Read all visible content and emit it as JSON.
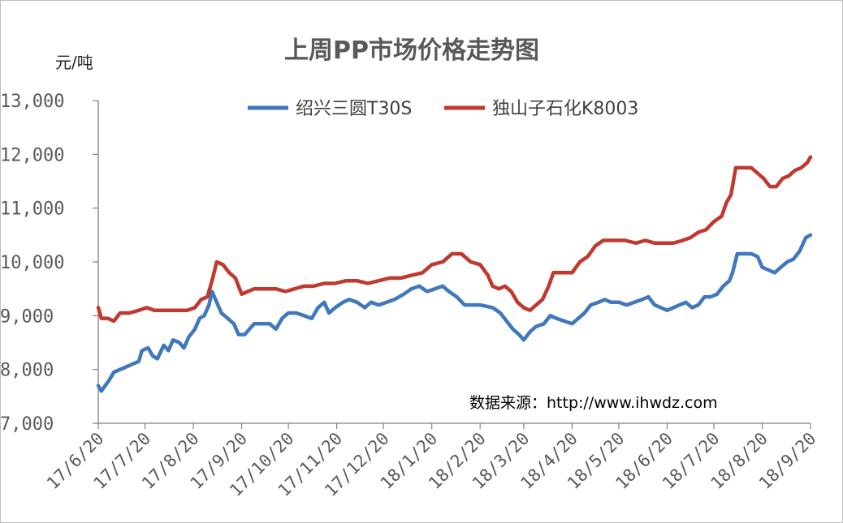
{
  "chart_data": {
    "type": "line",
    "title": "上周PP市场价格走势图",
    "ylabel": "元/吨",
    "ylim": [
      7000,
      13000
    ],
    "yticks": [
      "7,000",
      "8,000",
      "9,000",
      "10,000",
      "11,000",
      "12,000",
      "13,000"
    ],
    "ytick_values": [
      7000,
      8000,
      9000,
      10000,
      11000,
      12000,
      13000
    ],
    "xlim": [
      "2017-06-20",
      "2018-09-20"
    ],
    "xticks": [
      "17/6/20",
      "17/7/20",
      "17/8/20",
      "17/9/20",
      "17/10/20",
      "17/11/20",
      "17/12/20",
      "18/1/20",
      "18/2/20",
      "18/3/20",
      "18/4/20",
      "18/5/20",
      "18/6/20",
      "18/7/20",
      "18/8/20",
      "18/9/20"
    ],
    "grid": false,
    "legend_position": "top-center",
    "source_note": "数据来源：http://www.ihwdz.com",
    "series": [
      {
        "name": "绍兴三圆T30S",
        "color": "#3F78BC",
        "points": [
          [
            "2017-06-20",
            7700
          ],
          [
            "2017-06-22",
            7600
          ],
          [
            "2017-06-27",
            7800
          ],
          [
            "2017-06-30",
            7950
          ],
          [
            "2017-07-04",
            8000
          ],
          [
            "2017-07-08",
            8050
          ],
          [
            "2017-07-12",
            8100
          ],
          [
            "2017-07-16",
            8150
          ],
          [
            "2017-07-18",
            8350
          ],
          [
            "2017-07-22",
            8400
          ],
          [
            "2017-07-25",
            8250
          ],
          [
            "2017-07-28",
            8200
          ],
          [
            "2017-08-01",
            8450
          ],
          [
            "2017-08-04",
            8350
          ],
          [
            "2017-08-07",
            8550
          ],
          [
            "2017-08-11",
            8500
          ],
          [
            "2017-08-14",
            8400
          ],
          [
            "2017-08-17",
            8600
          ],
          [
            "2017-08-21",
            8750
          ],
          [
            "2017-08-24",
            8950
          ],
          [
            "2017-08-27",
            9000
          ],
          [
            "2017-08-30",
            9200
          ],
          [
            "2017-09-01",
            9450
          ],
          [
            "2017-09-04",
            9250
          ],
          [
            "2017-09-07",
            9050
          ],
          [
            "2017-09-11",
            8950
          ],
          [
            "2017-09-15",
            8850
          ],
          [
            "2017-09-18",
            8650
          ],
          [
            "2017-09-22",
            8650
          ],
          [
            "2017-09-25",
            8750
          ],
          [
            "2017-09-28",
            8850
          ],
          [
            "2017-10-03",
            8850
          ],
          [
            "2017-10-08",
            8850
          ],
          [
            "2017-10-12",
            8750
          ],
          [
            "2017-10-16",
            8950
          ],
          [
            "2017-10-20",
            9050
          ],
          [
            "2017-10-25",
            9050
          ],
          [
            "2017-10-30",
            9000
          ],
          [
            "2017-11-04",
            8950
          ],
          [
            "2017-11-08",
            9150
          ],
          [
            "2017-11-12",
            9250
          ],
          [
            "2017-11-15",
            9050
          ],
          [
            "2017-11-19",
            9150
          ],
          [
            "2017-11-24",
            9250
          ],
          [
            "2017-11-28",
            9300
          ],
          [
            "2017-12-03",
            9250
          ],
          [
            "2017-12-08",
            9150
          ],
          [
            "2017-12-12",
            9250
          ],
          [
            "2017-12-17",
            9200
          ],
          [
            "2017-12-22",
            9250
          ],
          [
            "2017-12-27",
            9300
          ],
          [
            "2018-01-02",
            9400
          ],
          [
            "2018-01-07",
            9500
          ],
          [
            "2018-01-12",
            9550
          ],
          [
            "2018-01-17",
            9450
          ],
          [
            "2018-01-22",
            9500
          ],
          [
            "2018-01-27",
            9550
          ],
          [
            "2018-01-31",
            9450
          ],
          [
            "2018-02-05",
            9350
          ],
          [
            "2018-02-10",
            9200
          ],
          [
            "2018-02-20",
            9200
          ],
          [
            "2018-02-28",
            9150
          ],
          [
            "2018-03-05",
            9050
          ],
          [
            "2018-03-09",
            8900
          ],
          [
            "2018-03-13",
            8750
          ],
          [
            "2018-03-17",
            8650
          ],
          [
            "2018-03-20",
            8550
          ],
          [
            "2018-03-24",
            8700
          ],
          [
            "2018-03-28",
            8800
          ],
          [
            "2018-04-02",
            8850
          ],
          [
            "2018-04-06",
            9000
          ],
          [
            "2018-04-10",
            8950
          ],
          [
            "2018-04-15",
            8900
          ],
          [
            "2018-04-20",
            8850
          ],
          [
            "2018-04-24",
            8950
          ],
          [
            "2018-04-28",
            9050
          ],
          [
            "2018-05-02",
            9200
          ],
          [
            "2018-05-07",
            9250
          ],
          [
            "2018-05-11",
            9300
          ],
          [
            "2018-05-15",
            9250
          ],
          [
            "2018-05-20",
            9250
          ],
          [
            "2018-05-25",
            9200
          ],
          [
            "2018-05-30",
            9250
          ],
          [
            "2018-06-04",
            9300
          ],
          [
            "2018-06-08",
            9350
          ],
          [
            "2018-06-12",
            9200
          ],
          [
            "2018-06-16",
            9150
          ],
          [
            "2018-06-20",
            9100
          ],
          [
            "2018-06-24",
            9150
          ],
          [
            "2018-06-28",
            9200
          ],
          [
            "2018-07-02",
            9250
          ],
          [
            "2018-07-06",
            9150
          ],
          [
            "2018-07-10",
            9200
          ],
          [
            "2018-07-14",
            9350
          ],
          [
            "2018-07-18",
            9350
          ],
          [
            "2018-07-22",
            9400
          ],
          [
            "2018-07-26",
            9550
          ],
          [
            "2018-07-30",
            9650
          ],
          [
            "2018-08-01",
            9800
          ],
          [
            "2018-08-04",
            10150
          ],
          [
            "2018-08-08",
            10150
          ],
          [
            "2018-08-13",
            10150
          ],
          [
            "2018-08-17",
            10100
          ],
          [
            "2018-08-20",
            9900
          ],
          [
            "2018-08-24",
            9850
          ],
          [
            "2018-08-28",
            9800
          ],
          [
            "2018-09-01",
            9900
          ],
          [
            "2018-09-05",
            10000
          ],
          [
            "2018-09-09",
            10050
          ],
          [
            "2018-09-13",
            10200
          ],
          [
            "2018-09-17",
            10450
          ],
          [
            "2018-09-20",
            10500
          ]
        ]
      },
      {
        "name": "独山子石化K8003",
        "color": "#C0392F",
        "points": [
          [
            "2017-06-20",
            9150
          ],
          [
            "2017-06-22",
            8950
          ],
          [
            "2017-06-26",
            8950
          ],
          [
            "2017-06-30",
            8900
          ],
          [
            "2017-07-04",
            9050
          ],
          [
            "2017-07-10",
            9050
          ],
          [
            "2017-07-16",
            9100
          ],
          [
            "2017-07-21",
            9150
          ],
          [
            "2017-07-26",
            9100
          ],
          [
            "2017-08-03",
            9100
          ],
          [
            "2017-08-11",
            9100
          ],
          [
            "2017-08-16",
            9100
          ],
          [
            "2017-08-21",
            9150
          ],
          [
            "2017-08-25",
            9300
          ],
          [
            "2017-08-29",
            9350
          ],
          [
            "2017-09-01",
            9650
          ],
          [
            "2017-09-04",
            10000
          ],
          [
            "2017-09-08",
            9950
          ],
          [
            "2017-09-12",
            9800
          ],
          [
            "2017-09-16",
            9700
          ],
          [
            "2017-09-20",
            9400
          ],
          [
            "2017-09-24",
            9450
          ],
          [
            "2017-09-28",
            9500
          ],
          [
            "2017-10-05",
            9500
          ],
          [
            "2017-10-12",
            9500
          ],
          [
            "2017-10-18",
            9450
          ],
          [
            "2017-10-24",
            9500
          ],
          [
            "2017-10-30",
            9550
          ],
          [
            "2017-11-05",
            9550
          ],
          [
            "2017-11-12",
            9600
          ],
          [
            "2017-11-19",
            9600
          ],
          [
            "2017-11-26",
            9650
          ],
          [
            "2017-12-03",
            9650
          ],
          [
            "2017-12-10",
            9600
          ],
          [
            "2017-12-17",
            9650
          ],
          [
            "2017-12-24",
            9700
          ],
          [
            "2017-12-31",
            9700
          ],
          [
            "2018-01-07",
            9750
          ],
          [
            "2018-01-14",
            9800
          ],
          [
            "2018-01-20",
            9950
          ],
          [
            "2018-01-27",
            10000
          ],
          [
            "2018-02-02",
            10150
          ],
          [
            "2018-02-08",
            10150
          ],
          [
            "2018-02-14",
            10000
          ],
          [
            "2018-02-20",
            9950
          ],
          [
            "2018-02-25",
            9750
          ],
          [
            "2018-02-28",
            9550
          ],
          [
            "2018-03-04",
            9500
          ],
          [
            "2018-03-08",
            9550
          ],
          [
            "2018-03-12",
            9450
          ],
          [
            "2018-03-16",
            9250
          ],
          [
            "2018-03-20",
            9150
          ],
          [
            "2018-03-24",
            9100
          ],
          [
            "2018-03-28",
            9200
          ],
          [
            "2018-04-01",
            9300
          ],
          [
            "2018-04-05",
            9550
          ],
          [
            "2018-04-08",
            9800
          ],
          [
            "2018-04-14",
            9800
          ],
          [
            "2018-04-20",
            9800
          ],
          [
            "2018-04-25",
            10000
          ],
          [
            "2018-04-30",
            10100
          ],
          [
            "2018-05-05",
            10300
          ],
          [
            "2018-05-10",
            10400
          ],
          [
            "2018-05-17",
            10400
          ],
          [
            "2018-05-24",
            10400
          ],
          [
            "2018-05-31",
            10350
          ],
          [
            "2018-06-06",
            10400
          ],
          [
            "2018-06-12",
            10350
          ],
          [
            "2018-06-18",
            10350
          ],
          [
            "2018-06-24",
            10350
          ],
          [
            "2018-06-30",
            10400
          ],
          [
            "2018-07-05",
            10450
          ],
          [
            "2018-07-10",
            10550
          ],
          [
            "2018-07-15",
            10600
          ],
          [
            "2018-07-20",
            10750
          ],
          [
            "2018-07-25",
            10850
          ],
          [
            "2018-07-28",
            11100
          ],
          [
            "2018-07-31",
            11250
          ],
          [
            "2018-08-03",
            11750
          ],
          [
            "2018-08-08",
            11750
          ],
          [
            "2018-08-13",
            11750
          ],
          [
            "2018-08-17",
            11650
          ],
          [
            "2018-08-21",
            11550
          ],
          [
            "2018-08-25",
            11400
          ],
          [
            "2018-08-29",
            11400
          ],
          [
            "2018-09-02",
            11550
          ],
          [
            "2018-09-06",
            11600
          ],
          [
            "2018-09-10",
            11700
          ],
          [
            "2018-09-14",
            11750
          ],
          [
            "2018-09-18",
            11850
          ],
          [
            "2018-09-20",
            11950
          ]
        ]
      }
    ]
  }
}
